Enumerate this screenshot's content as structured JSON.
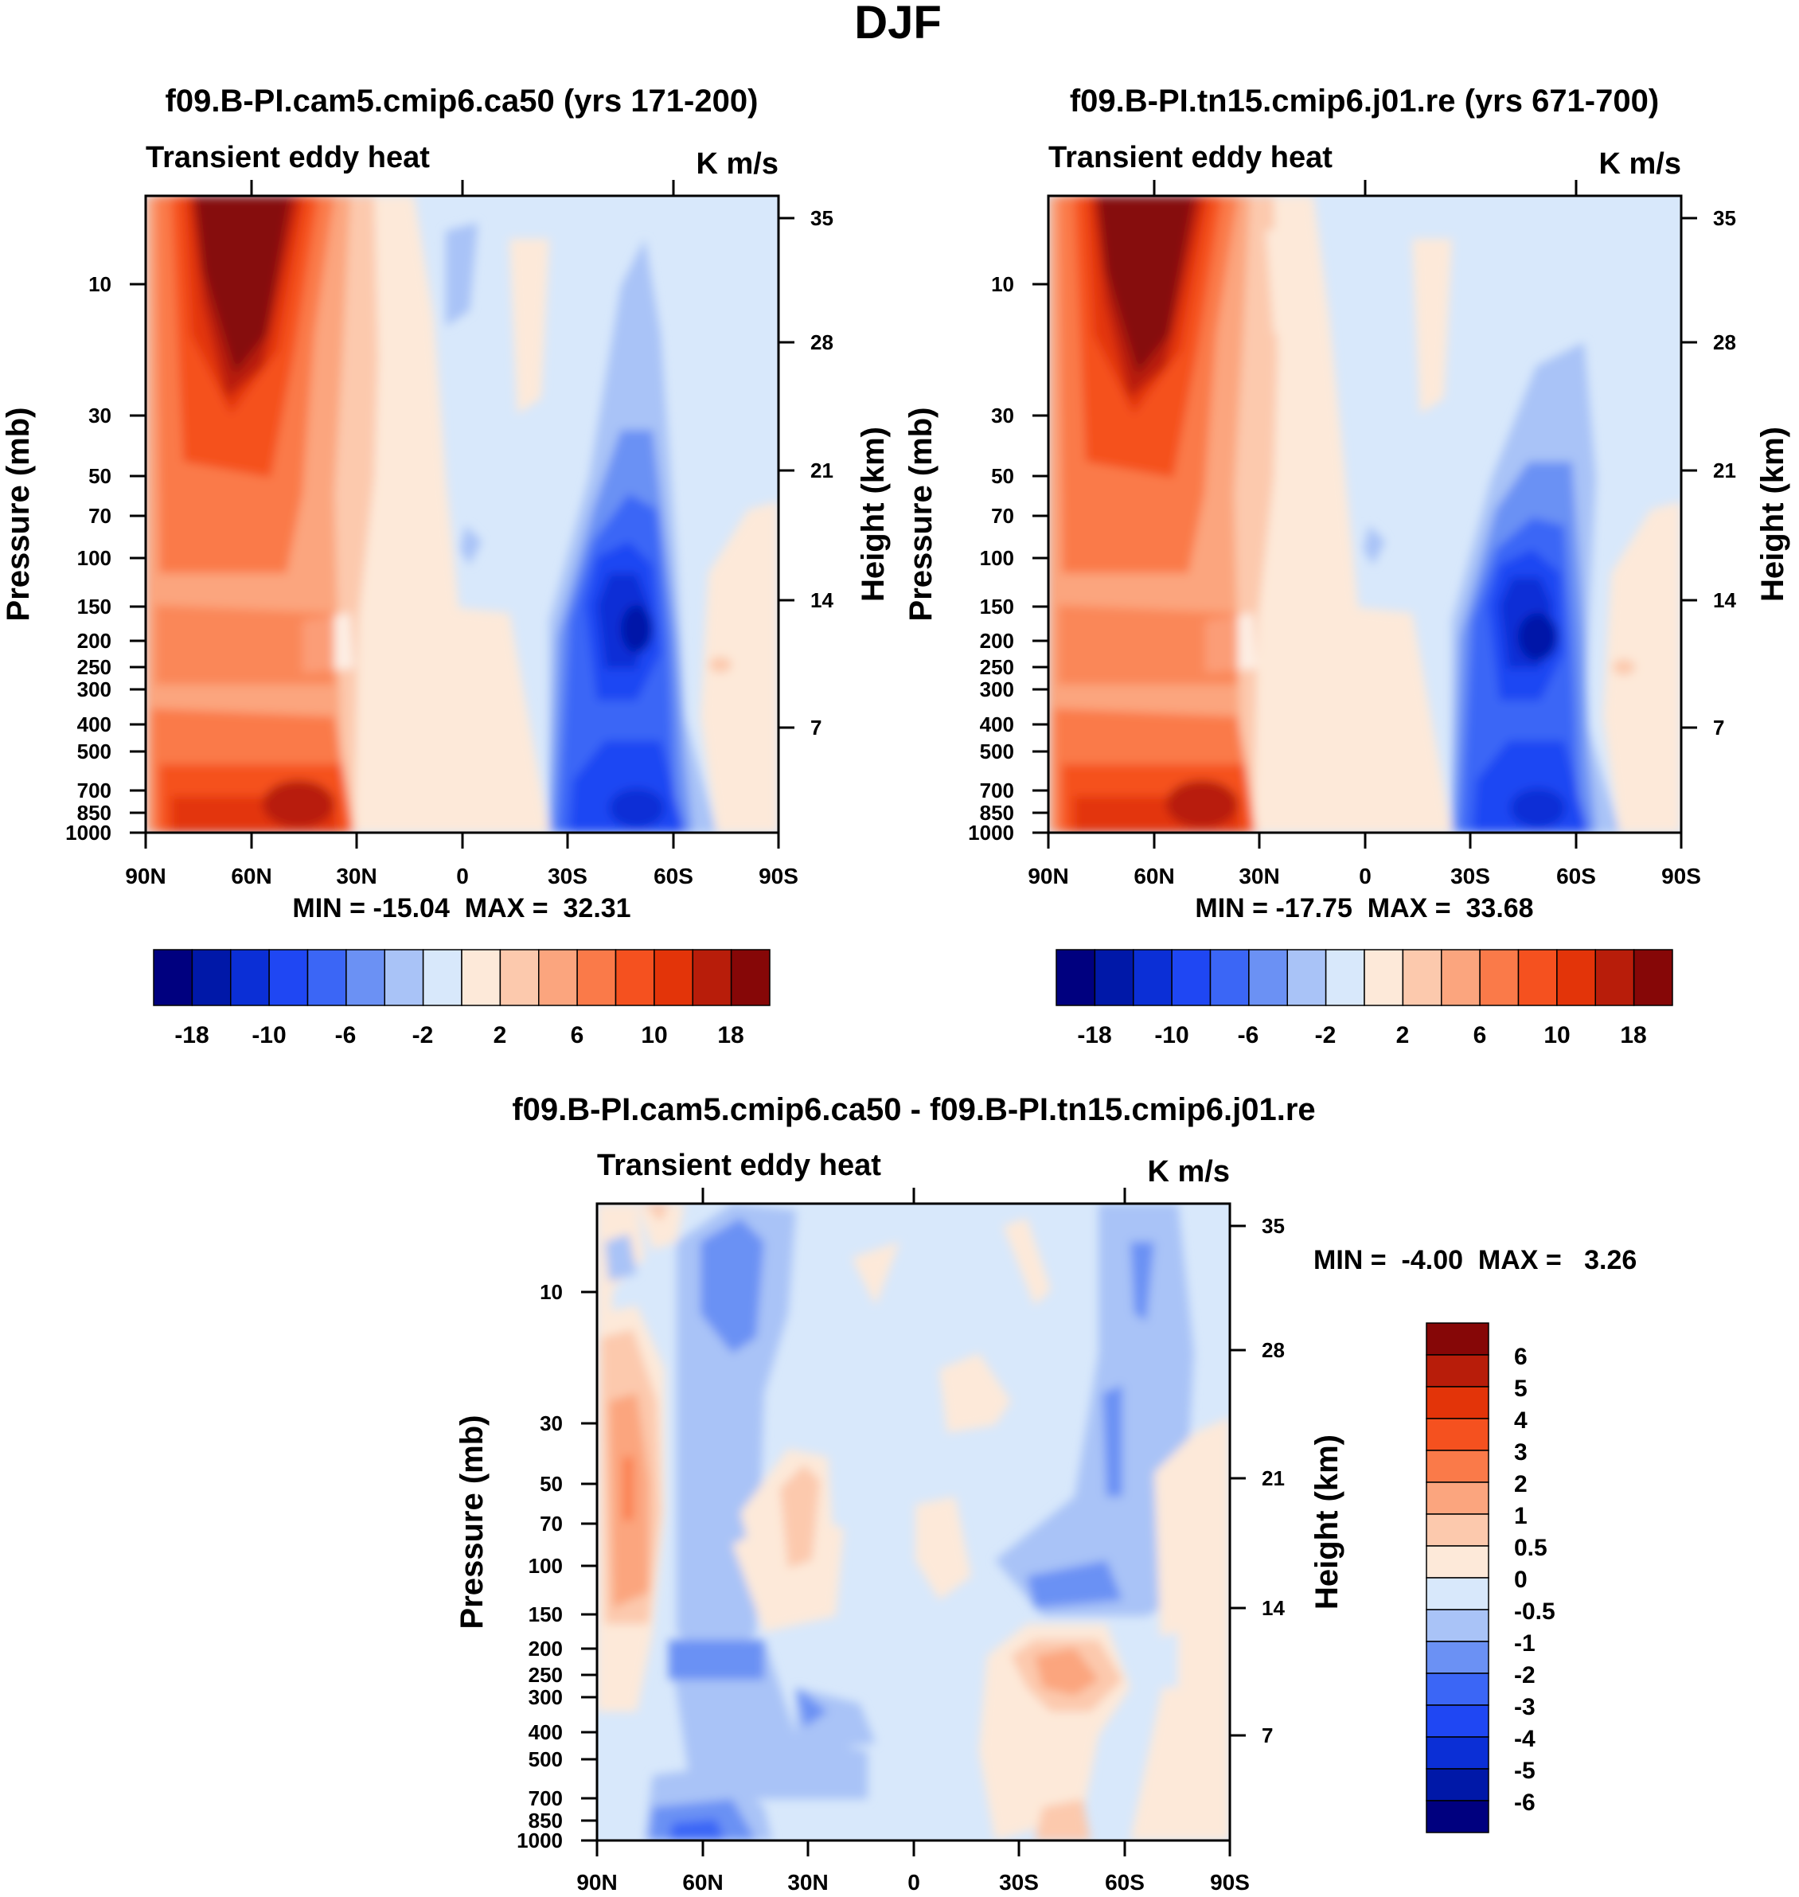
{
  "page_title": "DJF",
  "colors": {
    "blue_scale": [
      "#00007f",
      "#0018a8",
      "#0b2fd6",
      "#1f47f3",
      "#3b66f6",
      "#6b91f4",
      "#a9c3f7",
      "#d8e8fb"
    ],
    "red_scale": [
      "#fde9d9",
      "#fcc9ad",
      "#fba57e",
      "#fa7a49",
      "#f5511f",
      "#e33409",
      "#b81d0a",
      "#860707"
    ]
  },
  "chart_data": [
    {
      "type": "heatmap",
      "panel": "top-left",
      "title": "f09.B-PI.cam5.cmip6.ca50 (yrs 171-200)",
      "left_label": "Transient eddy heat",
      "right_label": "K m/s",
      "xlabel": "",
      "ylabel": "Pressure (mb)",
      "y2label": "Height (km)",
      "x_ticks": [
        "90N",
        "60N",
        "30N",
        "0",
        "30S",
        "60S",
        "90S"
      ],
      "y_ticks": [
        "10",
        "30",
        "50",
        "70",
        "100",
        "150",
        "200",
        "250",
        "300",
        "400",
        "500",
        "700",
        "850",
        "1000"
      ],
      "y2_ticks": [
        "35",
        "28",
        "21",
        "14",
        "7"
      ],
      "min_max": "MIN = -15.04  MAX =  32.31",
      "colorbar_labels": [
        "-18",
        "-10",
        "-6",
        "-2",
        "2",
        "6",
        "10",
        "18"
      ],
      "colorbar_levels": [
        -18,
        -14,
        -10,
        -8,
        -6,
        -4,
        -2,
        0,
        2,
        4,
        6,
        8,
        10,
        14,
        18
      ]
    },
    {
      "type": "heatmap",
      "panel": "top-right",
      "title": "f09.B-PI.tn15.cmip6.j01.re (yrs 671-700)",
      "left_label": "Transient eddy heat",
      "right_label": "K m/s",
      "xlabel": "",
      "ylabel": "Pressure (mb)",
      "y2label": "Height (km)",
      "x_ticks": [
        "90N",
        "60N",
        "30N",
        "0",
        "30S",
        "60S",
        "90S"
      ],
      "y_ticks": [
        "10",
        "30",
        "50",
        "70",
        "100",
        "150",
        "200",
        "250",
        "300",
        "400",
        "500",
        "700",
        "850",
        "1000"
      ],
      "y2_ticks": [
        "35",
        "28",
        "21",
        "14",
        "7"
      ],
      "min_max": "MIN = -17.75  MAX =  33.68",
      "colorbar_labels": [
        "-18",
        "-10",
        "-6",
        "-2",
        "2",
        "6",
        "10",
        "18"
      ],
      "colorbar_levels": [
        -18,
        -14,
        -10,
        -8,
        -6,
        -4,
        -2,
        0,
        2,
        4,
        6,
        8,
        10,
        14,
        18
      ]
    },
    {
      "type": "heatmap",
      "panel": "bottom",
      "title": "f09.B-PI.cam5.cmip6.ca50 - f09.B-PI.tn15.cmip6.j01.re",
      "left_label": "Transient eddy heat",
      "right_label": "K m/s",
      "xlabel": "",
      "ylabel": "Pressure (mb)",
      "y2label": "Height (km)",
      "x_ticks": [
        "90N",
        "60N",
        "30N",
        "0",
        "30S",
        "60S",
        "90S"
      ],
      "y_ticks": [
        "10",
        "30",
        "50",
        "70",
        "100",
        "150",
        "200",
        "250",
        "300",
        "400",
        "500",
        "700",
        "850",
        "1000"
      ],
      "y2_ticks": [
        "35",
        "28",
        "21",
        "14",
        "7"
      ],
      "min_max": "MIN =  -4.00  MAX =   3.26",
      "colorbar_labels": [
        "6",
        "5",
        "4",
        "3",
        "2",
        "1",
        "0.5",
        "0",
        "-0.5",
        "-1",
        "-2",
        "-3",
        "-4",
        "-5",
        "-6"
      ],
      "colorbar_levels": [
        6,
        5,
        4,
        3,
        2,
        1,
        0.5,
        0,
        -0.5,
        -1,
        -2,
        -3,
        -4,
        -5,
        -6
      ]
    }
  ]
}
